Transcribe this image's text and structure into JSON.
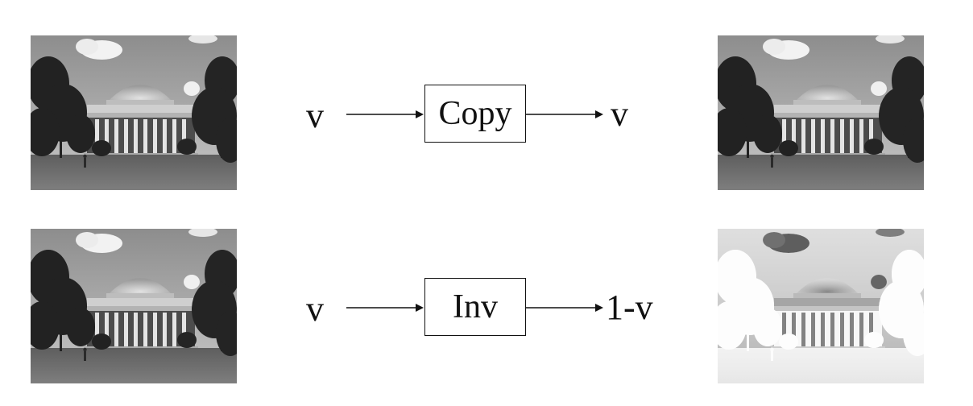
{
  "rows": [
    {
      "input_symbol": "v",
      "operation": "Copy",
      "output_symbol": "v",
      "input_image": "campus-dome-photo-grayscale",
      "output_image": "campus-dome-photo-grayscale"
    },
    {
      "input_symbol": "v",
      "operation": "Inv",
      "output_symbol": "1-v",
      "input_image": "campus-dome-photo-grayscale",
      "output_image": "campus-dome-photo-inverted"
    }
  ]
}
